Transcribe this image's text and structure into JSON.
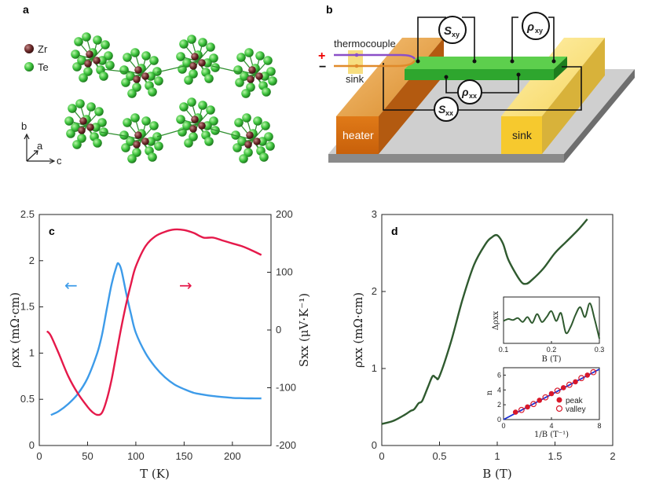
{
  "panel_a": {
    "label": "a",
    "legend": [
      {
        "element": "Zr",
        "color": "#6e2b2b"
      },
      {
        "element": "Te",
        "color": "#3cc23c"
      }
    ],
    "axes": [
      "b",
      "a",
      "c"
    ]
  },
  "panel_b": {
    "label": "b",
    "labels": {
      "thermocouple": "thermocouple",
      "sink_small": "sink",
      "heater": "heater",
      "sink_block": "sink",
      "plus": "+",
      "minus": "−"
    },
    "meters": {
      "sxy": "S",
      "sxy_sub": "xy",
      "rxy": "ρ",
      "rxy_sub": "xy",
      "rxx": "ρ",
      "rxx_sub": "xx",
      "sxx": "S",
      "sxx_sub": "xx"
    }
  },
  "chart_data": [
    {
      "panel": "c",
      "type": "line",
      "x_label": "T (K)",
      "y_label_left": "ρxx (mΩ·cm)",
      "y_label_right": "Sxx (μV·K⁻¹)",
      "xlim": [
        0,
        240
      ],
      "ylim_left": [
        0,
        2.5
      ],
      "ylim_right": [
        -200,
        200
      ],
      "x_ticks": [
        "0",
        "50",
        "100",
        "150",
        "200"
      ],
      "y_ticks_left": [
        "0",
        "0.5",
        "1",
        "1.5",
        "2",
        "2.5"
      ],
      "y_ticks_right": [
        "-200",
        "-100",
        "0",
        "100",
        "200"
      ],
      "series": [
        {
          "name": "ρxx",
          "axis": "left",
          "color": "#3d9be9",
          "x": [
            12,
            20,
            30,
            40,
            50,
            60,
            65,
            70,
            75,
            80,
            82,
            85,
            90,
            95,
            100,
            110,
            120,
            130,
            140,
            150,
            160,
            170,
            180,
            190,
            200,
            210,
            220,
            230
          ],
          "y": [
            0.33,
            0.37,
            0.45,
            0.56,
            0.73,
            1.0,
            1.2,
            1.48,
            1.75,
            1.94,
            1.97,
            1.9,
            1.65,
            1.42,
            1.22,
            1.0,
            0.85,
            0.74,
            0.66,
            0.61,
            0.57,
            0.55,
            0.535,
            0.525,
            0.515,
            0.512,
            0.51,
            0.51
          ]
        },
        {
          "name": "Sxx",
          "axis": "right",
          "color": "#e5194a",
          "x": [
            8,
            12,
            20,
            30,
            40,
            50,
            55,
            60,
            65,
            70,
            75,
            80,
            85,
            90,
            95,
            100,
            110,
            120,
            130,
            140,
            150,
            160,
            170,
            180,
            190,
            200,
            210,
            220,
            230
          ],
          "y": [
            -2,
            -10,
            -40,
            -80,
            -110,
            -133,
            -142,
            -147,
            -143,
            -120,
            -85,
            -40,
            5,
            45,
            80,
            110,
            145,
            162,
            170,
            174,
            173,
            168,
            160,
            160,
            155,
            150,
            145,
            138,
            130
          ]
        }
      ],
      "annotations": [
        "←",
        "→"
      ]
    },
    {
      "panel": "d",
      "type": "line",
      "x_label": "B (T)",
      "y_label": "ρxx (mΩ·cm)",
      "xlim": [
        0,
        2
      ],
      "ylim": [
        0,
        3
      ],
      "x_ticks": [
        "0",
        "0.5",
        "1",
        "1.5",
        "2"
      ],
      "y_ticks": [
        "0",
        "1",
        "2",
        "3"
      ],
      "series": [
        {
          "name": "ρxx",
          "color": "#2f5a2f",
          "x": [
            0,
            0.1,
            0.2,
            0.25,
            0.28,
            0.32,
            0.35,
            0.4,
            0.44,
            0.47,
            0.5,
            0.6,
            0.7,
            0.8,
            0.9,
            0.95,
            1.0,
            1.05,
            1.1,
            1.2,
            1.25,
            1.3,
            1.4,
            1.5,
            1.6,
            1.7,
            1.78
          ],
          "y": [
            0.28,
            0.32,
            0.4,
            0.45,
            0.47,
            0.55,
            0.58,
            0.76,
            0.9,
            0.88,
            0.9,
            1.35,
            1.9,
            2.35,
            2.62,
            2.7,
            2.73,
            2.62,
            2.4,
            2.14,
            2.1,
            2.15,
            2.3,
            2.5,
            2.65,
            2.8,
            2.94
          ]
        }
      ],
      "insets": [
        {
          "type": "line",
          "x_label": "B (T)",
          "y_label": "Δρxx",
          "xlim": [
            0.1,
            0.3
          ],
          "x_ticks": [
            "0.1",
            "0.2",
            "0.3"
          ],
          "x": [
            0.1,
            0.11,
            0.12,
            0.13,
            0.14,
            0.15,
            0.16,
            0.17,
            0.18,
            0.19,
            0.2,
            0.21,
            0.22,
            0.23,
            0.24,
            0.25,
            0.26,
            0.27,
            0.28,
            0.29,
            0.3
          ],
          "y": [
            0.0,
            0.1,
            0.05,
            0.15,
            -0.05,
            0.2,
            -0.1,
            0.35,
            -0.05,
            0.2,
            0.5,
            0.0,
            0.4,
            -0.6,
            -0.3,
            0.3,
            0.7,
            0.2,
            0.9,
            0.1,
            -0.9
          ]
        },
        {
          "type": "scatter",
          "x_label": "1/B (T⁻¹)",
          "y_label": "n",
          "xlim": [
            0,
            8
          ],
          "ylim": [
            0,
            7
          ],
          "x_ticks": [
            "0",
            "4",
            "8"
          ],
          "y_ticks": [
            "0",
            "2",
            "4",
            "6"
          ],
          "fit": {
            "x": [
              0,
              8
            ],
            "y": [
              0,
              6.8
            ]
          },
          "peak": {
            "label": "peak",
            "x": [
              1,
              2,
              3,
              4,
              5,
              6,
              7
            ],
            "y": [
              1,
              1.7,
              2.6,
              3.5,
              4.3,
              5.1,
              6.0
            ]
          },
          "valley": {
            "label": "valley",
            "x": [
              1.5,
              2.5,
              3.5,
              4.5,
              5.5,
              6.5,
              7.5
            ],
            "y": [
              1.3,
              2.1,
              3.0,
              3.9,
              4.7,
              5.6,
              6.4
            ]
          }
        }
      ]
    }
  ]
}
